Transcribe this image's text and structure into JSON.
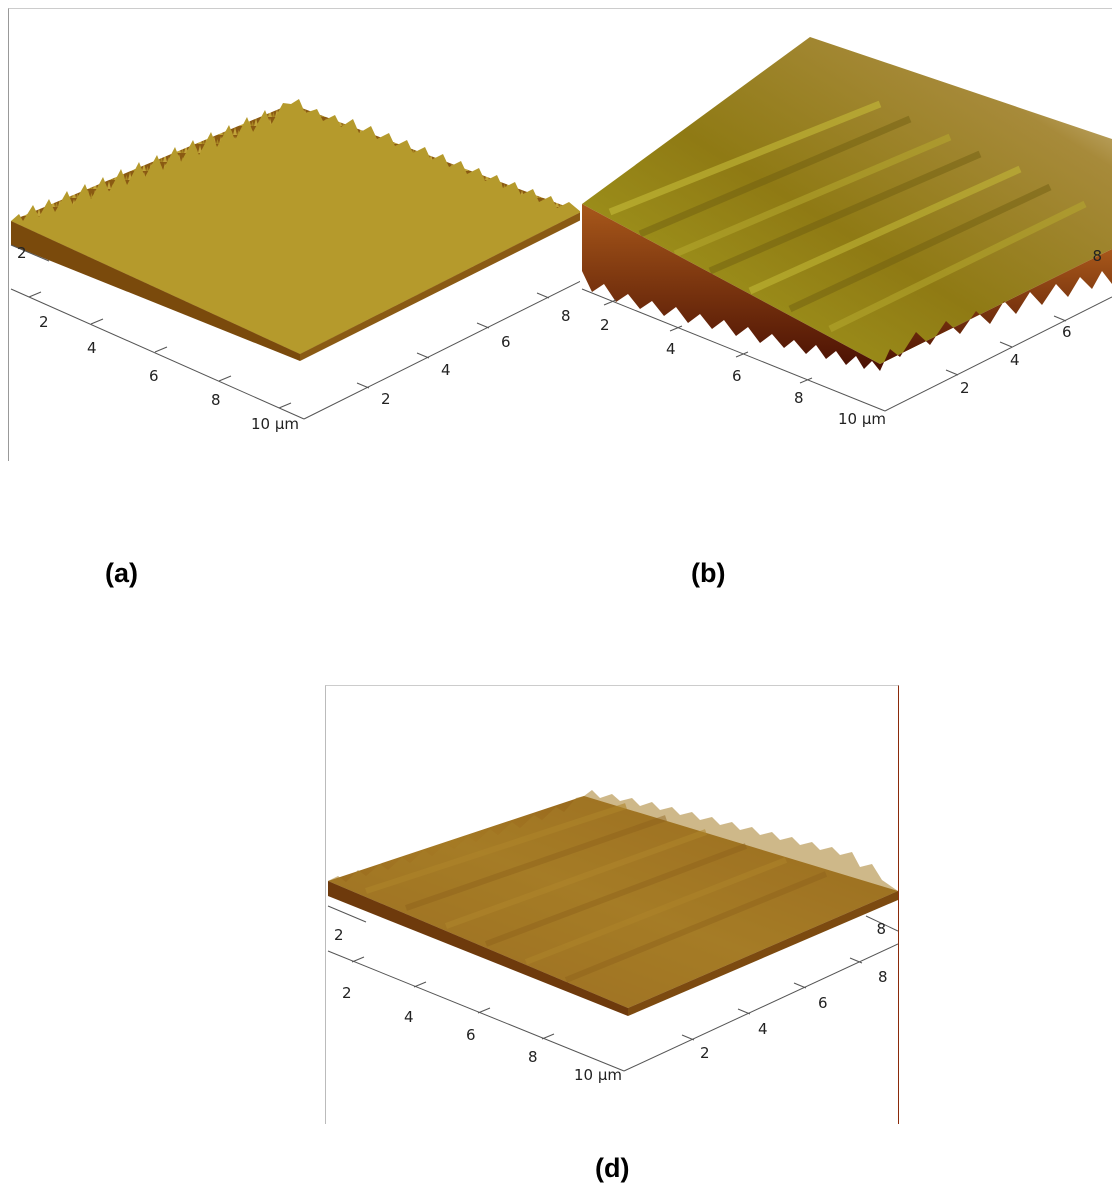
{
  "panels": [
    {
      "id": "a",
      "caption": "(a)",
      "front_axis_ticks": [
        "2",
        "4",
        "6",
        "8",
        "10 µm"
      ],
      "right_axis_ticks": [
        "2",
        "4",
        "6",
        "8"
      ],
      "corner_ticks": [
        "2"
      ],
      "surface": "dense fine peaks",
      "colors": {
        "top": "#b9982a",
        "mid": "#8a5a12",
        "dark": "#5a3005"
      }
    },
    {
      "id": "b",
      "caption": "(b)",
      "front_axis_ticks": [
        "2",
        "4",
        "6",
        "8",
        "10 µm"
      ],
      "right_axis_ticks": [
        "2",
        "4",
        "6"
      ],
      "corner_ticks": [
        "8"
      ],
      "surface": "tall striped ridges",
      "colors": {
        "top": "#c7ad57",
        "mid": "#9a7016",
        "dark": "#5a1a05"
      }
    },
    {
      "id": "d",
      "caption": "(d)",
      "front_axis_ticks": [
        "2",
        "4",
        "6",
        "8",
        "10 µm"
      ],
      "right_axis_ticks": [
        "2",
        "4",
        "6",
        "8"
      ],
      "corner_ticks": [
        "2",
        "8"
      ],
      "surface": "smooth striped",
      "colors": {
        "top": "#b58a2a",
        "mid": "#8c5a14",
        "dark": "#5a2c07"
      }
    }
  ]
}
